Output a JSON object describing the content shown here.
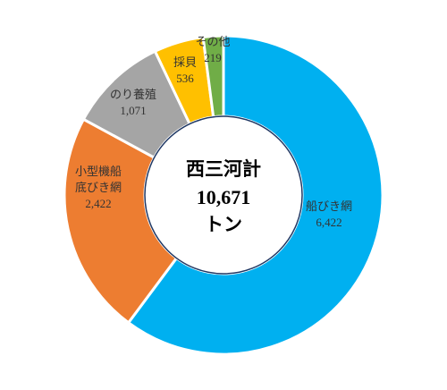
{
  "chart_data": {
    "type": "pie",
    "variant": "donut",
    "slices": [
      {
        "label": "船びき網",
        "label_lines": [
          "船びき網"
        ],
        "value": 6422,
        "value_text": "6,422",
        "color": "#00B0F0"
      },
      {
        "label": "小型機船底びき網",
        "label_lines": [
          "小型機船",
          "底びき網"
        ],
        "value": 2422,
        "value_text": "2,422",
        "color": "#ED7D31"
      },
      {
        "label": "のり養殖",
        "label_lines": [
          "のり養殖"
        ],
        "value": 1071,
        "value_text": "1,071",
        "color": "#A5A5A5"
      },
      {
        "label": "採貝",
        "label_lines": [
          "採貝"
        ],
        "value": 536,
        "value_text": "536",
        "color": "#FFC000"
      },
      {
        "label": "その他",
        "label_lines": [
          "その他"
        ],
        "value": 219,
        "value_text": "219",
        "color": "#70AD47"
      }
    ],
    "center": {
      "line1": "西三河計",
      "line2": "10,671",
      "line3": "トン"
    },
    "start_angle": "12 o'clock",
    "direction": "clockwise",
    "inner_ring_color": "#1F3864"
  }
}
